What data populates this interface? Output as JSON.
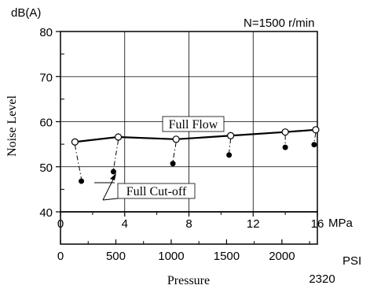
{
  "chart_data": {
    "type": "line",
    "ylabel": "Noise Level",
    "y_unit": "dB(A)",
    "condition_label": "N=1500 r/min",
    "xlabel": "Pressure",
    "ylim": [
      40,
      80
    ],
    "yticks": [
      40,
      50,
      60,
      70,
      80
    ],
    "x_primary": {
      "unit": "MPa",
      "range": [
        0,
        16
      ],
      "ticks": [
        0,
        4,
        8,
        12,
        16
      ]
    },
    "x_secondary": {
      "unit": "PSI",
      "ticks": [
        0,
        500,
        1000,
        1500,
        2000
      ],
      "end_label": "2320",
      "end_value": 2320
    },
    "grid": true,
    "series": [
      {
        "name": "Full Flow",
        "marker": "open-circle",
        "line": "solid",
        "x": [
          0.9,
          3.6,
          7.2,
          10.6,
          14.0,
          15.9
        ],
        "y": [
          55.5,
          56.6,
          56.1,
          56.9,
          57.7,
          58.2
        ]
      },
      {
        "name": "Full Cut-off",
        "marker": "filled-circle",
        "line": "none",
        "x": [
          1.3,
          3.3,
          7.0,
          10.5,
          14.0,
          15.8
        ],
        "y": [
          46.8,
          48.9,
          50.7,
          52.6,
          54.3,
          54.9
        ]
      }
    ]
  }
}
